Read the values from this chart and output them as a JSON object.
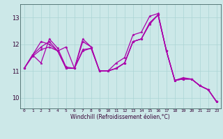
{
  "xlabel": "Windchill (Refroidissement éolien,°C)",
  "background_color": "#cce8e8",
  "grid_color": "#aad4d4",
  "line_color": "#aa00aa",
  "xlim_min": -0.5,
  "xlim_max": 23.5,
  "ylim_min": 9.6,
  "ylim_max": 13.5,
  "ytick_values": [
    10,
    11,
    12,
    13
  ],
  "xtick_labels": [
    "0",
    "1",
    "2",
    "3",
    "4",
    "5",
    "6",
    "7",
    "8",
    "9",
    "10",
    "11",
    "12",
    "13",
    "14",
    "15",
    "16",
    "17",
    "18",
    "19",
    "20",
    "21",
    "22",
    "23"
  ],
  "series": [
    [
      11.1,
      11.6,
      11.3,
      12.2,
      11.85,
      11.15,
      11.1,
      12.2,
      11.9,
      11.0,
      11.0,
      11.3,
      11.5,
      12.35,
      12.45,
      13.05,
      13.15,
      11.75,
      10.65,
      10.75,
      10.7,
      10.45,
      10.3,
      9.85
    ],
    [
      11.1,
      11.6,
      11.9,
      12.1,
      11.75,
      11.9,
      11.1,
      12.1,
      11.9,
      11.0,
      11.0,
      11.1,
      11.3,
      12.1,
      12.2,
      12.8,
      13.1,
      11.75,
      10.65,
      10.7,
      10.7,
      10.45,
      10.3,
      9.85
    ],
    [
      11.1,
      11.6,
      12.1,
      12.0,
      11.75,
      11.1,
      11.1,
      11.8,
      11.85,
      11.0,
      11.0,
      11.1,
      11.3,
      12.1,
      12.2,
      12.8,
      13.1,
      11.75,
      10.65,
      10.7,
      10.7,
      10.45,
      10.3,
      9.85
    ],
    [
      11.1,
      11.55,
      11.8,
      11.9,
      11.75,
      11.1,
      11.1,
      11.75,
      11.85,
      11.0,
      11.0,
      11.1,
      11.3,
      12.1,
      12.2,
      12.75,
      13.1,
      11.75,
      10.65,
      10.7,
      10.7,
      10.45,
      10.3,
      9.85
    ]
  ],
  "xlabel_fontsize": 5.5,
  "xtick_fontsize": 4.5,
  "ytick_fontsize": 6,
  "linewidth": 0.9,
  "markersize": 2.5
}
